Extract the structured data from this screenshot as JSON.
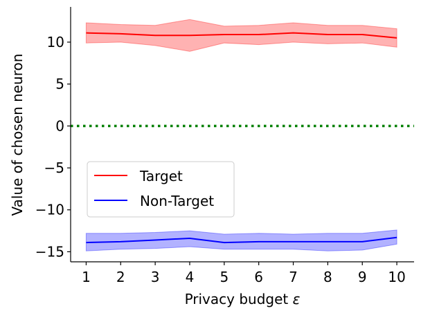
{
  "chart_data": {
    "type": "line",
    "xlabel": "Privacy budget ",
    "xlabel_symbol": "ε",
    "ylabel": "Value of chosen neuron",
    "xlim": [
      0.55,
      10.5
    ],
    "ylim": [
      -16.2,
      14.2
    ],
    "x_ticks": [
      1,
      2,
      3,
      4,
      5,
      6,
      7,
      8,
      9,
      10
    ],
    "x_tick_labels": [
      "1",
      "2",
      "3",
      "4",
      "5",
      "6",
      "7",
      "8",
      "9",
      "10"
    ],
    "y_ticks": [
      10,
      5,
      0,
      -5,
      -10,
      -15
    ],
    "y_tick_labels": [
      "10",
      "5",
      "0",
      "−5",
      "−10",
      "−15"
    ],
    "grid": false,
    "legend_position": "lower-left",
    "reference_line": {
      "y": 0,
      "style": "dotted",
      "color": "#008000"
    },
    "series": [
      {
        "name": "Target",
        "color": "#ff0000",
        "band_color": "#ff0000",
        "x": [
          1,
          2,
          3,
          4,
          5,
          6,
          7,
          8,
          9,
          10
        ],
        "y": [
          11.1,
          11.0,
          10.8,
          10.8,
          10.9,
          10.9,
          11.1,
          10.9,
          10.9,
          10.5
        ],
        "upper": [
          12.3,
          12.1,
          12.0,
          12.7,
          11.9,
          12.0,
          12.3,
          12.0,
          12.0,
          11.6
        ],
        "lower": [
          9.9,
          10.0,
          9.6,
          8.9,
          9.9,
          9.7,
          10.0,
          9.8,
          9.9,
          9.4
        ]
      },
      {
        "name": "Non-Target",
        "color": "#0000ff",
        "band_color": "#0000ff",
        "x": [
          1,
          2,
          3,
          4,
          5,
          6,
          7,
          8,
          9,
          10
        ],
        "y": [
          -13.9,
          -13.8,
          -13.6,
          -13.4,
          -13.9,
          -13.8,
          -13.8,
          -13.8,
          -13.8,
          -13.3
        ],
        "upper": [
          -12.8,
          -12.8,
          -12.7,
          -12.5,
          -12.9,
          -12.8,
          -12.9,
          -12.8,
          -12.8,
          -12.4
        ],
        "lower": [
          -14.9,
          -14.7,
          -14.6,
          -14.4,
          -14.7,
          -14.7,
          -14.7,
          -14.9,
          -14.8,
          -14.1
        ]
      }
    ]
  }
}
